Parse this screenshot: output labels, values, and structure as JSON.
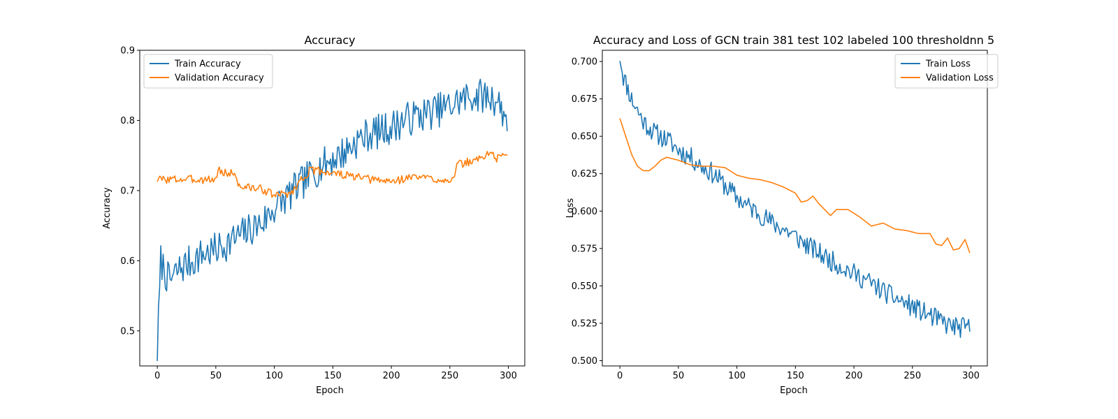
{
  "colors": {
    "train": "#1f77b4",
    "validation": "#ff7f0e"
  },
  "chart_data": [
    {
      "type": "line",
      "title": "Accuracy",
      "xlabel": "Epoch",
      "ylabel": "Accuracy",
      "xlim": [
        -15,
        314
      ],
      "ylim": [
        0.45,
        0.9
      ],
      "xticks": [
        0,
        50,
        100,
        150,
        200,
        250,
        300
      ],
      "yticks": [
        0.5,
        0.6,
        0.7,
        0.8,
        0.9
      ],
      "tick_decimals": 1,
      "grid": false,
      "legend": "upper-left",
      "series": [
        {
          "name": "Train Accuracy",
          "color": "#1f77b4",
          "keypoints": [
            [
              0,
              0.47
            ],
            [
              3,
              0.6
            ],
            [
              10,
              0.57
            ],
            [
              20,
              0.59
            ],
            [
              30,
              0.6
            ],
            [
              40,
              0.61
            ],
            [
              50,
              0.615
            ],
            [
              60,
              0.625
            ],
            [
              70,
              0.635
            ],
            [
              80,
              0.645
            ],
            [
              90,
              0.655
            ],
            [
              100,
              0.675
            ],
            [
              110,
              0.69
            ],
            [
              120,
              0.705
            ],
            [
              130,
              0.72
            ],
            [
              140,
              0.735
            ],
            [
              150,
              0.745
            ],
            [
              160,
              0.755
            ],
            [
              170,
              0.77
            ],
            [
              180,
              0.78
            ],
            [
              190,
              0.785
            ],
            [
              200,
              0.79
            ],
            [
              210,
              0.8
            ],
            [
              220,
              0.805
            ],
            [
              230,
              0.81
            ],
            [
              240,
              0.815
            ],
            [
              250,
              0.82
            ],
            [
              260,
              0.83
            ],
            [
              270,
              0.835
            ],
            [
              280,
              0.835
            ],
            [
              290,
              0.83
            ],
            [
              299,
              0.8
            ]
          ],
          "noise": 0.025,
          "seed": 7
        },
        {
          "name": "Validation Accuracy",
          "color": "#ff7f0e",
          "keypoints": [
            [
              0,
              0.716
            ],
            [
              51,
              0.716
            ],
            [
              52,
              0.735
            ],
            [
              54,
              0.725
            ],
            [
              66,
              0.725
            ],
            [
              70,
              0.706
            ],
            [
              90,
              0.702
            ],
            [
              100,
              0.693
            ],
            [
              115,
              0.697
            ],
            [
              120,
              0.71
            ],
            [
              130,
              0.728
            ],
            [
              140,
              0.728
            ],
            [
              160,
              0.722
            ],
            [
              180,
              0.716
            ],
            [
              200,
              0.713
            ],
            [
              220,
              0.72
            ],
            [
              240,
              0.716
            ],
            [
              254,
              0.716
            ],
            [
              256,
              0.736
            ],
            [
              275,
              0.745
            ],
            [
              285,
              0.755
            ],
            [
              290,
              0.745
            ],
            [
              299,
              0.755
            ]
          ],
          "noise": 0.006,
          "seed": 3
        }
      ]
    },
    {
      "type": "line",
      "title": "Accuracy and Loss of GCN train 381 test 102 labeled 100 thresholdnn 5",
      "xlabel": "Epoch",
      "ylabel": "Loss",
      "xlim": [
        -15,
        314
      ],
      "ylim": [
        0.4965,
        0.7075
      ],
      "xticks": [
        0,
        50,
        100,
        150,
        200,
        250,
        300
      ],
      "yticks": [
        0.5,
        0.525,
        0.55,
        0.575,
        0.6,
        0.625,
        0.65,
        0.675,
        0.7
      ],
      "tick_decimals": 3,
      "grid": false,
      "legend": "upper-right",
      "series": [
        {
          "name": "Train Loss",
          "color": "#1f77b4",
          "keypoints": [
            [
              0,
              0.704
            ],
            [
              3,
              0.69
            ],
            [
              10,
              0.675
            ],
            [
              20,
              0.66
            ],
            [
              30,
              0.652
            ],
            [
              40,
              0.648
            ],
            [
              50,
              0.641
            ],
            [
              60,
              0.636
            ],
            [
              70,
              0.63
            ],
            [
              80,
              0.625
            ],
            [
              90,
              0.617
            ],
            [
              100,
              0.609
            ],
            [
              110,
              0.603
            ],
            [
              120,
              0.598
            ],
            [
              130,
              0.592
            ],
            [
              140,
              0.588
            ],
            [
              150,
              0.583
            ],
            [
              160,
              0.577
            ],
            [
              170,
              0.572
            ],
            [
              180,
              0.567
            ],
            [
              190,
              0.563
            ],
            [
              200,
              0.558
            ],
            [
              210,
              0.554
            ],
            [
              220,
              0.549
            ],
            [
              230,
              0.544
            ],
            [
              240,
              0.54
            ],
            [
              250,
              0.536
            ],
            [
              260,
              0.532
            ],
            [
              270,
              0.528
            ],
            [
              280,
              0.524
            ],
            [
              290,
              0.522
            ],
            [
              299,
              0.522
            ]
          ],
          "noise": 0.007,
          "seed": 11
        },
        {
          "name": "Validation Loss",
          "color": "#ff7f0e",
          "keypoints": [
            [
              0,
              0.662
            ],
            [
              5,
              0.65
            ],
            [
              10,
              0.638
            ],
            [
              15,
              0.63
            ],
            [
              20,
              0.627
            ],
            [
              25,
              0.627
            ],
            [
              30,
              0.63
            ],
            [
              35,
              0.634
            ],
            [
              40,
              0.636
            ],
            [
              50,
              0.634
            ],
            [
              60,
              0.631
            ],
            [
              70,
              0.63
            ],
            [
              80,
              0.63
            ],
            [
              90,
              0.629
            ],
            [
              100,
              0.624
            ],
            [
              110,
              0.622
            ],
            [
              120,
              0.621
            ],
            [
              130,
              0.619
            ],
            [
              140,
              0.616
            ],
            [
              150,
              0.612
            ],
            [
              155,
              0.606
            ],
            [
              160,
              0.607
            ],
            [
              165,
              0.61
            ],
            [
              170,
              0.605
            ],
            [
              180,
              0.597
            ],
            [
              185,
              0.601
            ],
            [
              195,
              0.601
            ],
            [
              205,
              0.596
            ],
            [
              215,
              0.59
            ],
            [
              225,
              0.592
            ],
            [
              235,
              0.588
            ],
            [
              245,
              0.587
            ],
            [
              255,
              0.585
            ],
            [
              265,
              0.585
            ],
            [
              270,
              0.578
            ],
            [
              275,
              0.577
            ],
            [
              280,
              0.582
            ],
            [
              285,
              0.574
            ],
            [
              290,
              0.575
            ],
            [
              295,
              0.581
            ],
            [
              299,
              0.572
            ]
          ],
          "noise": 0.0,
          "seed": 5
        }
      ]
    }
  ]
}
